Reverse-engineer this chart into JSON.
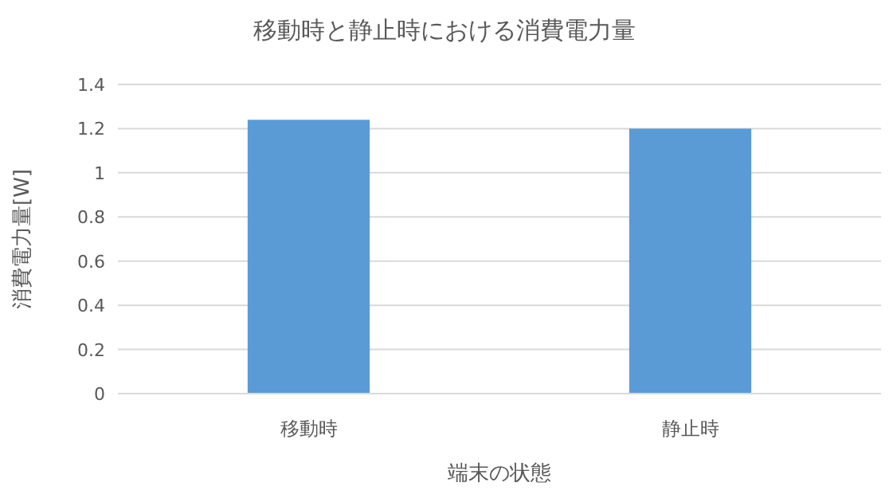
{
  "chart_data": {
    "type": "bar",
    "title": "移動時と静止時における消費電力量",
    "xlabel": "端末の状態",
    "ylabel": "消費電力量[W]",
    "categories": [
      "移動時",
      "静止時"
    ],
    "values": [
      1.24,
      1.2
    ],
    "color": "#5b9bd5",
    "ylim": [
      0,
      1.4
    ],
    "yticks": [
      0,
      0.2,
      0.4,
      0.6,
      0.8,
      1,
      1.2,
      1.4
    ],
    "grid": "y"
  }
}
